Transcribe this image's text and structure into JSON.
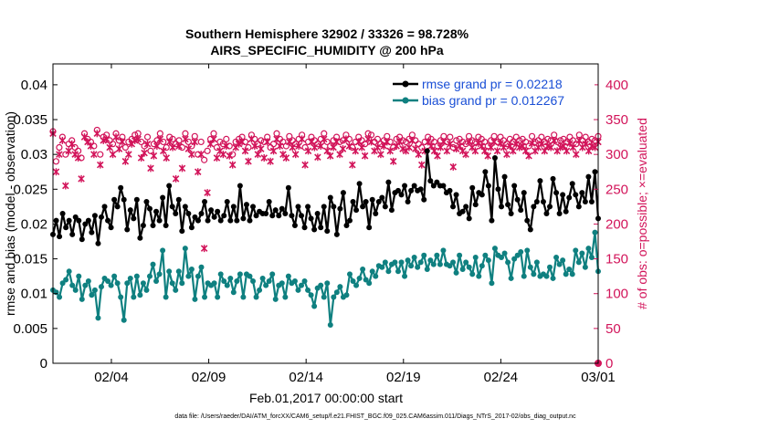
{
  "chart_data": {
    "type": "line",
    "title": "Southern Hemisphere 32902 / 33326 = 98.728%",
    "subtitle": "AIRS_SPECIFIC_HUMIDITY @ 200 hPa",
    "xlabel": "Feb.01,2017 00:00:00 start",
    "ylabel": "rmse and bias (model - observation)",
    "ylabel_right": "# of obs: o=possible; ×=evaluated",
    "footnote": "data file: /Users/raeder/DAI/ATM_forcXX/CAM6_setup/f.e21.FHIST_BGC.f09_025.CAM6assim.011/Diags_NTrS_2017-02/obs_diag_output.nc",
    "x_range_days": [
      1,
      29
    ],
    "x_ticks": [
      "02/04",
      "02/09",
      "02/14",
      "02/19",
      "02/24",
      "03/01"
    ],
    "x_tick_days": [
      4,
      9,
      14,
      19,
      24,
      29
    ],
    "ylim": [
      0,
      0.043
    ],
    "y_ticks": [
      "0",
      "0.005",
      "0.01",
      "0.015",
      "0.02",
      "0.025",
      "0.03",
      "0.035",
      "0.04"
    ],
    "y_right_lim": [
      0,
      430
    ],
    "y_right_ticks": [
      "0",
      "50",
      "100",
      "150",
      "200",
      "250",
      "300",
      "350",
      "400"
    ],
    "legend": [
      {
        "label": "rmse grand pr = 0.02218",
        "color": "#000000"
      },
      {
        "label": "bias grand pr = 0.012267",
        "color": "#0f8080"
      }
    ],
    "legend_position": "top-right",
    "series": [
      {
        "name": "rmse",
        "color": "#000000",
        "values": [
          0.0185,
          0.0205,
          0.0182,
          0.0215,
          0.0195,
          0.0205,
          0.0185,
          0.021,
          0.0205,
          0.0178,
          0.02,
          0.0205,
          0.0188,
          0.0212,
          0.0172,
          0.021,
          0.0225,
          0.0205,
          0.0195,
          0.0235,
          0.0225,
          0.0252,
          0.0235,
          0.0192,
          0.022,
          0.0208,
          0.0235,
          0.018,
          0.0198,
          0.0232,
          0.0222,
          0.0198,
          0.0218,
          0.0205,
          0.0238,
          0.0198,
          0.0255,
          0.0225,
          0.0215,
          0.0235,
          0.019,
          0.0225,
          0.0215,
          0.0195,
          0.021,
          0.0205,
          0.0215,
          0.0232,
          0.0205,
          0.022,
          0.021,
          0.0218,
          0.0205,
          0.0212,
          0.0232,
          0.0205,
          0.0225,
          0.0205,
          0.0255,
          0.0208,
          0.0228,
          0.0205,
          0.0225,
          0.0212,
          0.0218,
          0.0215,
          0.0215,
          0.0232,
          0.0212,
          0.022,
          0.0212,
          0.0222,
          0.0215,
          0.0252,
          0.0212,
          0.0198,
          0.0225,
          0.0212,
          0.0195,
          0.0225,
          0.0208,
          0.0192,
          0.0215,
          0.0195,
          0.0225,
          0.019,
          0.0238,
          0.0225,
          0.0185,
          0.0222,
          0.0245,
          0.0198,
          0.0205,
          0.0232,
          0.022,
          0.0258,
          0.0225,
          0.0232,
          0.0195,
          0.0235,
          0.0215,
          0.0232,
          0.0238,
          0.0225,
          0.026,
          0.022,
          0.0245,
          0.0248,
          0.0242,
          0.0255,
          0.0232,
          0.0248,
          0.0255,
          0.0248,
          0.025,
          0.0235,
          0.0305,
          0.0262,
          0.0255,
          0.026,
          0.0255,
          0.0255,
          0.0245,
          0.0248,
          0.0225,
          0.0242,
          0.0215,
          0.0218,
          0.0225,
          0.0208,
          0.0252,
          0.0228,
          0.0245,
          0.0242,
          0.0275,
          0.0255,
          0.0205,
          0.0295,
          0.025,
          0.0225,
          0.0268,
          0.0228,
          0.0215,
          0.0255,
          0.0235,
          0.022,
          0.0245,
          0.0205,
          0.0192,
          0.0225,
          0.0232,
          0.0262,
          0.0232,
          0.0215,
          0.0225,
          0.0265,
          0.0245,
          0.0215,
          0.0242,
          0.0218,
          0.0238,
          0.0258,
          0.0242,
          0.0225,
          0.0245,
          0.0232,
          0.0268,
          0.0232,
          0.0275,
          0.0208
        ]
      },
      {
        "name": "bias",
        "color": "#0f8080",
        "values": [
          0.0105,
          0.0102,
          0.0095,
          0.0115,
          0.012,
          0.0132,
          0.0112,
          0.0105,
          0.0125,
          0.0092,
          0.0112,
          0.0118,
          0.0098,
          0.0105,
          0.0065,
          0.011,
          0.0122,
          0.0118,
          0.0112,
          0.0125,
          0.0115,
          0.0095,
          0.0062,
          0.0115,
          0.0122,
          0.0095,
          0.0125,
          0.0098,
          0.0115,
          0.0105,
          0.0125,
          0.0142,
          0.0118,
          0.0128,
          0.0162,
          0.0095,
          0.0132,
          0.0115,
          0.0105,
          0.0132,
          0.0115,
          0.0165,
          0.0125,
          0.0135,
          0.0092,
          0.0125,
          0.0138,
          0.0095,
          0.0115,
          0.0112,
          0.0115,
          0.0095,
          0.0128,
          0.0118,
          0.0112,
          0.0122,
          0.0102,
          0.0118,
          0.0128,
          0.0095,
          0.0128,
          0.0125,
          0.0118,
          0.0095,
          0.0105,
          0.0122,
          0.0112,
          0.0118,
          0.0128,
          0.0092,
          0.0112,
          0.0115,
          0.0095,
          0.0125,
          0.0115,
          0.0118,
          0.0105,
          0.0112,
          0.0118,
          0.0105,
          0.0098,
          0.0082,
          0.0108,
          0.0112,
          0.0095,
          0.0115,
          0.0055,
          0.0095,
          0.0102,
          0.011,
          0.0095,
          0.0098,
          0.0128,
          0.0118,
          0.0112,
          0.0122,
          0.0135,
          0.012,
          0.0115,
          0.0132,
          0.0125,
          0.014,
          0.0138,
          0.0145,
          0.0132,
          0.0142,
          0.0145,
          0.0132,
          0.0145,
          0.0125,
          0.0148,
          0.014,
          0.0152,
          0.0138,
          0.0145,
          0.0155,
          0.0135,
          0.0148,
          0.0142,
          0.0155,
          0.0142,
          0.0162,
          0.0142,
          0.014,
          0.0145,
          0.013,
          0.0155,
          0.0135,
          0.0145,
          0.0138,
          0.0128,
          0.0152,
          0.0125,
          0.014,
          0.0155,
          0.0148,
          0.0115,
          0.0165,
          0.0155,
          0.0152,
          0.0158,
          0.0145,
          0.0122,
          0.015,
          0.0155,
          0.016,
          0.0125,
          0.0162,
          0.0138,
          0.0128,
          0.0145,
          0.0125,
          0.0128,
          0.0125,
          0.0138,
          0.0122,
          0.0152,
          0.0142,
          0.0148,
          0.0128,
          0.0135,
          0.0128,
          0.0162,
          0.0145,
          0.0158,
          0.0138,
          0.0165,
          0.0152,
          0.0188,
          0.0132
        ]
      }
    ],
    "obs_possible": [
      333,
      290,
      310,
      325,
      300,
      315,
      320,
      310,
      305,
      295,
      330,
      322,
      318,
      312,
      335,
      300,
      325,
      328,
      320,
      315,
      330,
      320,
      325,
      310,
      318,
      322,
      328,
      330,
      318,
      312,
      325,
      305,
      315,
      320,
      330,
      318,
      310,
      325,
      322,
      315,
      320,
      310,
      330,
      318,
      312,
      326,
      300,
      318,
      292,
      305,
      322,
      330,
      310,
      318,
      315,
      322,
      312,
      300,
      318,
      322,
      325,
      318,
      310,
      328,
      322,
      315,
      320,
      318,
      325,
      310,
      315,
      330,
      322,
      318,
      312,
      326,
      320,
      315,
      322,
      328,
      310,
      318,
      325,
      320,
      315,
      322,
      330,
      318,
      312,
      320,
      325,
      318,
      320,
      328,
      322,
      310,
      318,
      325,
      320,
      315,
      330,
      328,
      318,
      322,
      315,
      320,
      326,
      318,
      310,
      322,
      325,
      320,
      318,
      322,
      328,
      320,
      315,
      310,
      318,
      325,
      322,
      318,
      312,
      320,
      326,
      318,
      325,
      310,
      320,
      322,
      318,
      315,
      326,
      320,
      318,
      325,
      322,
      318,
      312,
      320,
      326,
      318,
      325,
      320,
      315,
      322,
      318,
      325,
      320,
      322,
      318,
      312,
      326,
      318,
      320,
      325,
      318,
      322,
      320,
      328,
      318,
      320,
      322,
      318,
      325,
      320,
      315,
      328,
      320,
      325,
      318,
      322,
      320,
      326
    ],
    "obs_evaluated": [
      330,
      275,
      300,
      320,
      255,
      305,
      315,
      300,
      295,
      265,
      325,
      318,
      312,
      300,
      330,
      285,
      320,
      322,
      310,
      300,
      325,
      308,
      318,
      290,
      300,
      315,
      320,
      322,
      295,
      302,
      315,
      280,
      298,
      312,
      322,
      305,
      295,
      318,
      310,
      265,
      312,
      280,
      322,
      308,
      300,
      318,
      275,
      300,
      165,
      245,
      315,
      322,
      295,
      305,
      300,
      312,
      298,
      285,
      310,
      315,
      318,
      305,
      290,
      322,
      312,
      300,
      308,
      295,
      318,
      290,
      305,
      322,
      312,
      300,
      295,
      318,
      310,
      300,
      312,
      322,
      285,
      305,
      318,
      310,
      296,
      312,
      322,
      305,
      298,
      310,
      318,
      300,
      308,
      322,
      312,
      285,
      305,
      318,
      310,
      298,
      322,
      318,
      305,
      310,
      300,
      312,
      318,
      305,
      290,
      312,
      318,
      308,
      305,
      310,
      320,
      308,
      300,
      285,
      305,
      318,
      312,
      305,
      298,
      310,
      318,
      305,
      315,
      282,
      308,
      312,
      305,
      300,
      318,
      310,
      305,
      316,
      312,
      305,
      298,
      310,
      318,
      305,
      316,
      310,
      300,
      312,
      305,
      315,
      310,
      312,
      305,
      298,
      316,
      305,
      310,
      315,
      305,
      312,
      310,
      320,
      305,
      310,
      312,
      305,
      316,
      310,
      300,
      320,
      310,
      315,
      305,
      312,
      310,
      318
    ]
  }
}
